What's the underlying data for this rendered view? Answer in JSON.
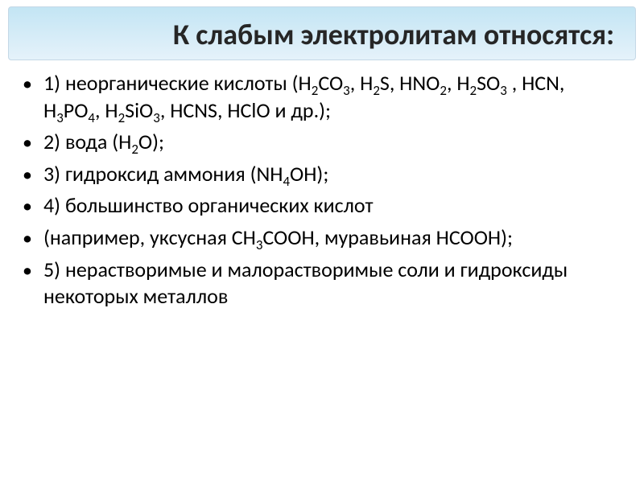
{
  "title": "К слабым электролитам относятся:",
  "items": [
    "1) неорганические кислоты (H₂CO₃, H₂S, HNO₂, H₂SO₃ , HCN, H₃PO₄, H₂SiO₃, HCNS, HClO и др.);",
    "2) вода (H₂O);",
    "3) гидроксид аммония (NH₄OH);",
    "4) большинство органических кислот",
    "(например, уксусная CH₃COOH, муравьиная HCOOH);",
    "5) нерастворимые и малорастворимые соли и гидроксиды некоторых металлов"
  ],
  "style": {
    "title_bg_gradient": [
      "#c3e5f4",
      "#e5f2fa"
    ],
    "title_border": "#c4d8e6",
    "title_color": "#262626",
    "title_fontsize": 36,
    "body_color": "#000000",
    "body_fontsize": 26,
    "bullet_color": "#000000",
    "slide_bg": "#ffffff",
    "font_family": "Calibri"
  }
}
